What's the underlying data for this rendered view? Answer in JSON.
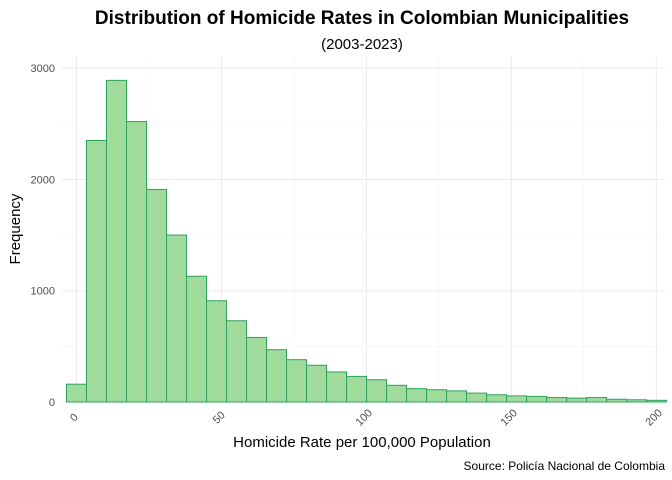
{
  "chart_data": {
    "type": "bar",
    "title": "Distribution of Homicide Rates in Colombian Municipalities",
    "subtitle": "(2003-2023)",
    "xlabel": "Homicide Rate per 100,000 Population",
    "ylabel": "Frequency",
    "caption": "Source: Policía Nacional de Colombia",
    "xlim": [
      -5,
      203
    ],
    "ylim": [
      0,
      3100
    ],
    "x_ticks": [
      0,
      50,
      100,
      150,
      200
    ],
    "x_tick_labels": [
      "0",
      "50",
      "100",
      "150",
      "200"
    ],
    "y_ticks": [
      0,
      1000,
      2000,
      3000
    ],
    "y_tick_labels": [
      "0",
      "1000",
      "2000",
      "3000"
    ],
    "grid": true,
    "legend": "none",
    "bin_width": 6.9,
    "bin_centers": [
      0,
      6.9,
      13.8,
      20.7,
      27.6,
      34.5,
      41.4,
      48.3,
      55.2,
      62.1,
      69.0,
      75.9,
      82.8,
      89.7,
      96.6,
      103.5,
      110.4,
      117.3,
      124.2,
      131.1,
      138.0,
      144.9,
      151.8,
      158.7,
      165.6,
      172.5,
      179.4,
      186.3,
      193.2,
      200.1
    ],
    "values": [
      160,
      2350,
      2890,
      2520,
      1910,
      1500,
      1130,
      910,
      730,
      580,
      470,
      380,
      330,
      270,
      230,
      200,
      150,
      120,
      110,
      100,
      80,
      65,
      55,
      50,
      40,
      35,
      40,
      25,
      20,
      15
    ],
    "colors": {
      "fill": "#a1db9b",
      "stroke": "#2ca25f"
    }
  }
}
